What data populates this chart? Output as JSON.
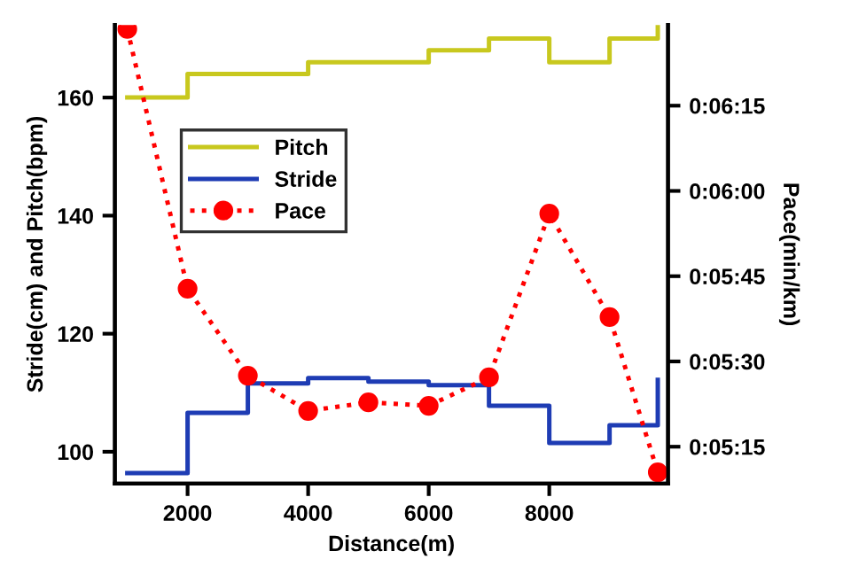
{
  "chart_data": {
    "type": "step",
    "xlabel": "Distance(m)",
    "ylabel": "Stride(cm) and Pitch(bpm)",
    "y2label": "Pace(min/km)",
    "xlim": [
      794,
      9970
    ],
    "xticks": [
      2000,
      4000,
      6000,
      8000
    ],
    "ylim": [
      94.6,
      172.3
    ],
    "yticks": [
      100,
      120,
      140,
      160
    ],
    "y2lim": [
      308.5,
      389.2
    ],
    "y2ticks": [
      {
        "value": 315,
        "label": "0:05:15"
      },
      {
        "value": 330,
        "label": "0:05:30"
      },
      {
        "value": 345,
        "label": "0:05:45"
      },
      {
        "value": 360,
        "label": "0:06:00"
      },
      {
        "value": 375,
        "label": "0:06:15"
      }
    ],
    "grid": false,
    "legend": "left",
    "series": [
      {
        "name": "Pitch",
        "color": "#c8c81e",
        "x": [
          1000,
          2000,
          3000,
          4000,
          5000,
          6000,
          7000,
          8000,
          9000,
          9800
        ],
        "values": [
          160,
          164,
          164,
          166,
          166,
          168,
          170,
          166,
          170,
          172
        ]
      },
      {
        "name": "Stride",
        "color": "#1e3cb4",
        "x": [
          1000,
          2000,
          3000,
          4000,
          5000,
          6000,
          7000,
          8000,
          9000,
          9800
        ],
        "values": [
          96.4,
          106.6,
          111.6,
          112.5,
          111.9,
          111.3,
          107.8,
          101.5,
          104.5,
          112.2
        ]
      },
      {
        "name": "Pace",
        "type": "line",
        "axis": "y2",
        "color": "#ff0000",
        "marker": "circle",
        "line_style": "dotted",
        "x": [
          1000,
          2000,
          3000,
          4000,
          5000,
          6000,
          7000,
          8000,
          9000,
          9800
        ],
        "values": [
          388.5,
          342.8,
          327.5,
          321.3,
          322.8,
          322.2,
          327.2,
          356,
          337.8,
          310.5
        ]
      }
    ]
  }
}
